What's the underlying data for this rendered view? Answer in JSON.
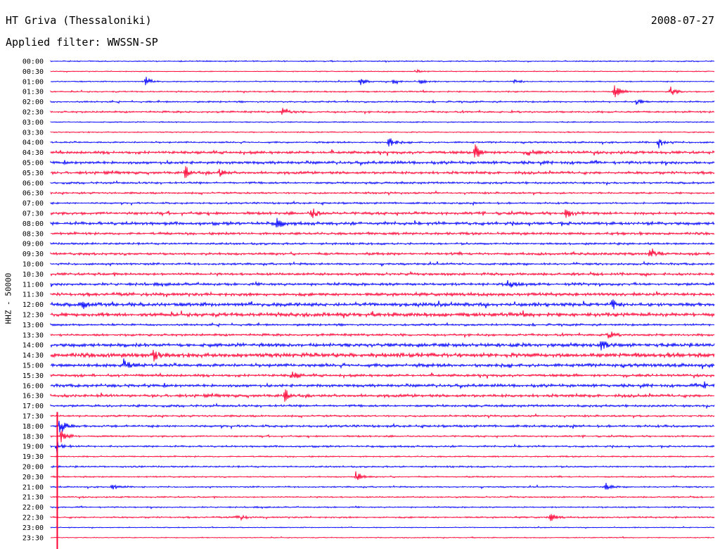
{
  "header": {
    "station": "HT Griva (Thessaloniki)",
    "date": "2008-07-27",
    "filter": "Applied filter: WWSSN-SP"
  },
  "ylabel": "HHZ - 50000",
  "colors": {
    "blue": "#0000ff",
    "red": "#ff0033"
  },
  "chart_data": {
    "type": "line",
    "title": "HT Griva (Thessaloniki)",
    "subtitle": "Applied filter: WWSSN-SP",
    "ylabel": "HHZ - 50000",
    "row_labels": [
      "00:00",
      "00:30",
      "01:00",
      "01:30",
      "02:00",
      "02:30",
      "03:00",
      "03:30",
      "04:00",
      "04:30",
      "05:00",
      "05:30",
      "06:00",
      "06:30",
      "07:00",
      "07:30",
      "08:00",
      "08:30",
      "09:00",
      "09:30",
      "10:00",
      "10:30",
      "11:00",
      "11:30",
      "12:00",
      "12:30",
      "13:00",
      "13:30",
      "14:00",
      "14:30",
      "15:00",
      "15:30",
      "16:00",
      "16:30",
      "17:00",
      "17:30",
      "18:00",
      "18:30",
      "19:00",
      "19:30",
      "20:00",
      "20:30",
      "21:00",
      "21:30",
      "22:00",
      "22:30",
      "23:00",
      "23:30"
    ],
    "row_colors": [
      "blue",
      "red"
    ],
    "minutes_per_row": 30,
    "noise_level": [
      1,
      0.8,
      1,
      1.2,
      1.4,
      1.6,
      1,
      1,
      1.5,
      2.4,
      2.6,
      2.4,
      1.8,
      1.6,
      1.6,
      2.4,
      2.8,
      2.2,
      1.8,
      2.2,
      1.8,
      2.2,
      2.4,
      2.8,
      3.2,
      3.4,
      1.8,
      2,
      3.2,
      3.8,
      3,
      2.2,
      2.6,
      2.6,
      2,
      1.6,
      2,
      1.4,
      1.6,
      1.2,
      1.4,
      1.2,
      1.2,
      1.2,
      1.2,
      1.4,
      0.8,
      0.8
    ],
    "events": [
      {
        "row": 1,
        "minute": 16.5,
        "amplitude": 3
      },
      {
        "row": 2,
        "minute": 4.3,
        "amplitude": 7
      },
      {
        "row": 2,
        "minute": 14,
        "amplitude": 6
      },
      {
        "row": 2,
        "minute": 15.5,
        "amplitude": 5
      },
      {
        "row": 2,
        "minute": 16.7,
        "amplitude": 4
      },
      {
        "row": 2,
        "minute": 21,
        "amplitude": 4
      },
      {
        "row": 3,
        "minute": 25.5,
        "amplitude": 10
      },
      {
        "row": 3,
        "minute": 28,
        "amplitude": 8
      },
      {
        "row": 4,
        "minute": 26.5,
        "amplitude": 6
      },
      {
        "row": 5,
        "minute": 10.5,
        "amplitude": 7
      },
      {
        "row": 8,
        "minute": 15.3,
        "amplitude": 8
      },
      {
        "row": 8,
        "minute": 27.5,
        "amplitude": 9
      },
      {
        "row": 9,
        "minute": 19.2,
        "amplitude": 11
      },
      {
        "row": 9,
        "minute": 21.6,
        "amplitude": 5
      },
      {
        "row": 11,
        "minute": 6.1,
        "amplitude": 10
      },
      {
        "row": 11,
        "minute": 7.6,
        "amplitude": 7
      },
      {
        "row": 15,
        "minute": 11.8,
        "amplitude": 8
      },
      {
        "row": 15,
        "minute": 23.3,
        "amplitude": 7
      },
      {
        "row": 16,
        "minute": 10.2,
        "amplitude": 8
      },
      {
        "row": 19,
        "minute": 27.1,
        "amplitude": 7
      },
      {
        "row": 22,
        "minute": 20.7,
        "amplitude": 8
      },
      {
        "row": 24,
        "minute": 1.4,
        "amplitude": 7
      },
      {
        "row": 24,
        "minute": 25.4,
        "amplitude": 7
      },
      {
        "row": 27,
        "minute": 25.1,
        "amplitude": 8
      },
      {
        "row": 28,
        "minute": 24.9,
        "amplitude": 9
      },
      {
        "row": 29,
        "minute": 4.6,
        "amplitude": 10
      },
      {
        "row": 30,
        "minute": 3.3,
        "amplitude": 9
      },
      {
        "row": 31,
        "minute": 10.9,
        "amplitude": 7
      },
      {
        "row": 32,
        "minute": 29.5,
        "amplitude": 6
      },
      {
        "row": 33,
        "minute": 10.6,
        "amplitude": 10
      },
      {
        "row": 36,
        "minute": 0.4,
        "amplitude": 14
      },
      {
        "row": 37,
        "minute": 0.5,
        "amplitude": 14
      },
      {
        "row": 38,
        "minute": 0.3,
        "amplitude": 12
      },
      {
        "row": 41,
        "minute": 13.8,
        "amplitude": 9
      },
      {
        "row": 42,
        "minute": 2.8,
        "amplitude": 5
      },
      {
        "row": 42,
        "minute": 25.1,
        "amplitude": 5
      },
      {
        "row": 45,
        "minute": 8.4,
        "amplitude": 7
      },
      {
        "row": 45,
        "minute": 22.6,
        "amplitude": 6
      }
    ],
    "main_event": {
      "row_start": 36,
      "row_end": 47,
      "minute": 0.3
    }
  }
}
